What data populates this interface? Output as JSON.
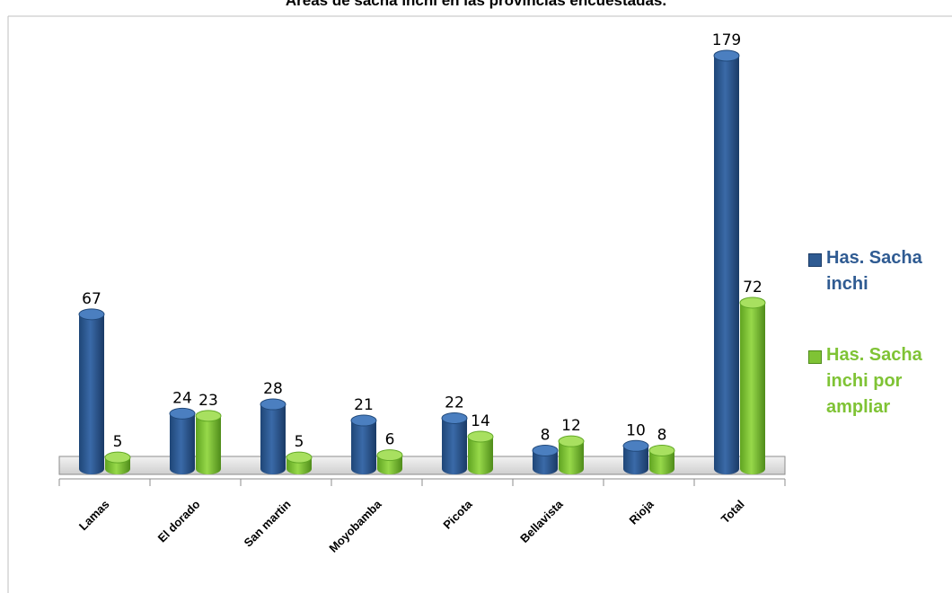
{
  "chart_data": {
    "type": "bar",
    "title": "Áreas de sacha inchi en las provincias encuestadas.",
    "categories": [
      "Lamas",
      "El dorado",
      "San martin",
      "Moyobamba",
      "Picota",
      "Bellavista",
      "Rioja",
      "Total"
    ],
    "series": [
      {
        "name": "Has. Sacha inchi",
        "values": [
          67,
          24,
          28,
          21,
          22,
          8,
          10,
          179
        ],
        "color": "#2f5b92"
      },
      {
        "name": "Has. Sacha inchi por ampliar",
        "values": [
          5,
          23,
          5,
          6,
          14,
          12,
          8,
          72
        ],
        "color": "#7fc335"
      }
    ],
    "ylim": [
      0,
      179
    ],
    "grid": false,
    "legend_position": "right",
    "data_labels": true,
    "style": "3d cylinder"
  }
}
